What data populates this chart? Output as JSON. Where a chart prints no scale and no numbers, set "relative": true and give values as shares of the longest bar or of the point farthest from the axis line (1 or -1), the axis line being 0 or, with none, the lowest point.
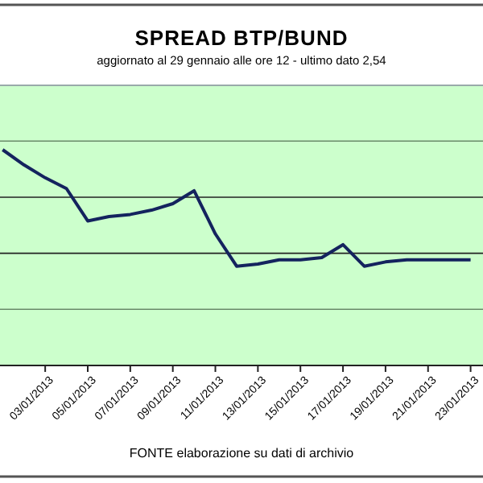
{
  "chart_data": {
    "type": "line",
    "title": "SPREAD  BTP/BUND",
    "subtitle": "aggiornato al 29 gennaio alle ore 12 - ultimo dato 2,54",
    "annotations": [
      "FONTE elaborazione su dati di archivio"
    ],
    "relative": true,
    "marker": "none",
    "ref_lines": [
      {
        "axis": "y",
        "value": 0.26,
        "color": "#6a8a6a"
      },
      {
        "axis": "y",
        "value": 0.52,
        "color": "#222222"
      },
      {
        "axis": "y",
        "value": 0.78,
        "color": "#222222"
      },
      {
        "axis": "y",
        "value": 1.04,
        "color": "#6a8a6a"
      }
    ],
    "line_style": "solid",
    "x": [
      "2013-01-01",
      "2013-01-02",
      "2013-01-03",
      "2013-01-04",
      "2013-01-05",
      "2013-01-06",
      "2013-01-07",
      "2013-01-08",
      "2013-01-09",
      "2013-01-10",
      "2013-01-11",
      "2013-01-12",
      "2013-01-13",
      "2013-01-14",
      "2013-01-15",
      "2013-01-16",
      "2013-01-17",
      "2013-01-18",
      "2013-01-19",
      "2013-01-20",
      "2013-01-21",
      "2013-01-22",
      "2013-01-23"
    ],
    "xlim": [
      "2012-12-31T21:00",
      "2013-01-23T14:00"
    ],
    "xticks": [
      {
        "value": "2013-01-03",
        "label": "03/01/2013"
      },
      {
        "value": "2013-01-05",
        "label": "05/01/2013"
      },
      {
        "value": "2013-01-07",
        "label": "07/01/2013"
      },
      {
        "value": "2013-01-09",
        "label": "09/01/2013"
      },
      {
        "value": "2013-01-11",
        "label": "11/01/2013"
      },
      {
        "value": "2013-01-13",
        "label": "13/01/2013"
      },
      {
        "value": "2013-01-15",
        "label": "15/01/2013"
      },
      {
        "value": "2013-01-17",
        "label": "17/01/2013"
      },
      {
        "value": "2013-01-19",
        "label": "19/01/2013"
      },
      {
        "value": "2013-01-21",
        "label": "21/01/2013"
      },
      {
        "value": "2013-01-23",
        "label": "23/01/2013"
      }
    ],
    "series": [
      {
        "color": "#14235e",
        "values": [
          1,
          0.93,
          0.87,
          0.82,
          0.67,
          0.69,
          0.7,
          0.72,
          0.75,
          0.81,
          0.61,
          0.46,
          0.47,
          0.49,
          0.49,
          0.5,
          0.56,
          0.46,
          0.48,
          0.49,
          0.49,
          0.49,
          0.49
        ]
      }
    ]
  }
}
